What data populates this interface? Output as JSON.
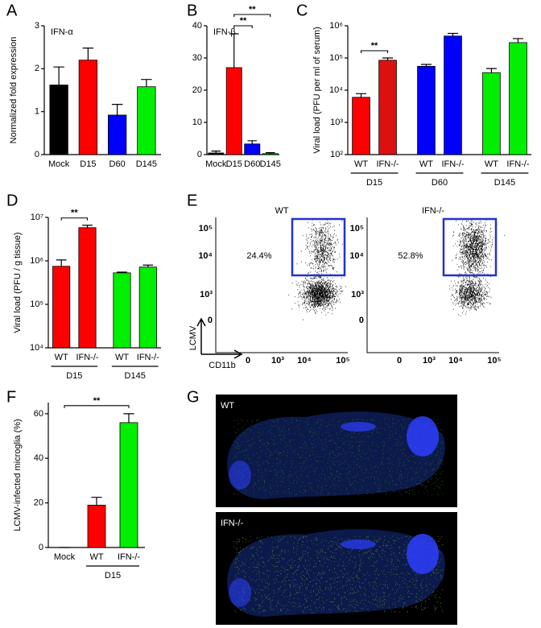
{
  "chart_data": [
    {
      "type": "bar",
      "panel": "A",
      "inner_title": "IFN-α",
      "y_label": "Normalized fold expression",
      "ylim": [
        0,
        3
      ],
      "yticks": [
        0,
        1,
        2,
        3
      ],
      "groups": [
        {
          "categories": [
            "Mock",
            "D15",
            "D60",
            "D145"
          ],
          "values": [
            1.62,
            2.2,
            0.92,
            1.58
          ],
          "errors": [
            0.42,
            0.28,
            0.25,
            0.17
          ],
          "colors": [
            "#000000",
            "#ff0000",
            "#0000ff",
            "#00ee00"
          ]
        }
      ]
    },
    {
      "type": "bar",
      "panel": "B",
      "inner_title": "IFN-β",
      "ylim": [
        0,
        40
      ],
      "yticks": [
        0,
        10,
        20,
        30,
        40
      ],
      "groups": [
        {
          "categories": [
            "Mock",
            "D15",
            "D60",
            "D145"
          ],
          "values": [
            0.5,
            27,
            3.3,
            0.3
          ],
          "errors": [
            0.6,
            10.5,
            1.0,
            0.3
          ],
          "colors": [
            "#000000",
            "#ff0000",
            "#0000ff",
            "#00ee00"
          ]
        }
      ],
      "brackets": [
        {
          "label": "**",
          "from": "D15",
          "to": "D60"
        },
        {
          "label": "**",
          "from": "D15",
          "to": "D145"
        }
      ]
    },
    {
      "type": "bar",
      "panel": "C",
      "y_label": "Viral load (PFU per ml of serum)",
      "log": true,
      "ylim": [
        100,
        1000000
      ],
      "yticks": [
        {
          "value": 100,
          "label": "10²"
        },
        {
          "value": 1000,
          "label": "10³"
        },
        {
          "value": 10000,
          "label": "10⁴"
        },
        {
          "value": 100000,
          "label": "10⁵"
        },
        {
          "value": 1000000,
          "label": "10⁶"
        }
      ],
      "groups": [
        {
          "label": "D15",
          "categories": [
            "WT",
            "IFN-/-"
          ],
          "values": [
            6000,
            85000
          ],
          "errors": [
            1800,
            15000
          ],
          "colors": [
            "#ff0000",
            "#dd1010"
          ],
          "bracket": "**"
        },
        {
          "label": "D60",
          "categories": [
            "WT",
            "IFN-/-"
          ],
          "values": [
            55000,
            480000
          ],
          "errors": [
            8000,
            100000
          ],
          "colors": [
            "#0000ff",
            "#0000ff"
          ]
        },
        {
          "label": "D145",
          "categories": [
            "WT",
            "IFN-/-"
          ],
          "values": [
            35000,
            300000
          ],
          "errors": [
            12000,
            100000
          ],
          "colors": [
            "#00ee00",
            "#00ee00"
          ]
        }
      ]
    },
    {
      "type": "bar",
      "panel": "D",
      "y_label": "Viral load (PFU / g tissue)",
      "log": true,
      "ylim": [
        10000,
        10000000
      ],
      "yticks": [
        {
          "value": 10000,
          "label": "10⁴"
        },
        {
          "value": 100000,
          "label": "10⁵"
        },
        {
          "value": 1000000,
          "label": "10⁶"
        },
        {
          "value": 10000000,
          "label": "10⁷"
        }
      ],
      "groups": [
        {
          "label": "D15",
          "categories": [
            "WT",
            "IFN-/-"
          ],
          "values": [
            750000,
            5800000
          ],
          "errors": [
            300000,
            800000
          ],
          "colors": [
            "#ff0000",
            "#ff0000"
          ],
          "bracket": "**"
        },
        {
          "label": "D145",
          "categories": [
            "WT",
            "IFN-/-"
          ],
          "values": [
            530000,
            720000
          ],
          "errors": [
            20000,
            80000
          ],
          "colors": [
            "#00ee00",
            "#00ee00"
          ]
        }
      ]
    },
    {
      "type": "bar",
      "panel": "F",
      "y_label": "LCMV-infected microglia (%)",
      "ylim": [
        0,
        65
      ],
      "yticks": [
        0,
        20,
        40,
        60
      ],
      "groups": [
        {
          "categories": [
            "Mock"
          ],
          "values": [
            0
          ],
          "errors": [
            0
          ],
          "colors": [
            "#000000"
          ]
        },
        {
          "label": "D15",
          "categories": [
            "WT",
            "IFN-/-"
          ],
          "values": [
            19,
            56
          ],
          "errors": [
            3.5,
            4
          ],
          "colors": [
            "#ff0000",
            "#00ee00"
          ]
        }
      ],
      "brackets": [
        {
          "label": "**",
          "from": "Mock",
          "to": "IFN-/-"
        }
      ]
    }
  ],
  "flow": {
    "panel": "E",
    "y_axis_label": "LCMV",
    "x_axis_label": "CD11b",
    "yticks": [
      "10⁵",
      "10⁴",
      "10³",
      "0"
    ],
    "xticks": [
      "0",
      "10³",
      "10⁴",
      "10⁵"
    ],
    "plots": [
      {
        "title": "WT",
        "percent": "24.4%"
      },
      {
        "title": "IFN-/-",
        "percent": "52.8%"
      }
    ]
  },
  "images": {
    "panel": "G",
    "items": [
      {
        "label": "WT"
      },
      {
        "label": "IFN-/-"
      }
    ]
  }
}
